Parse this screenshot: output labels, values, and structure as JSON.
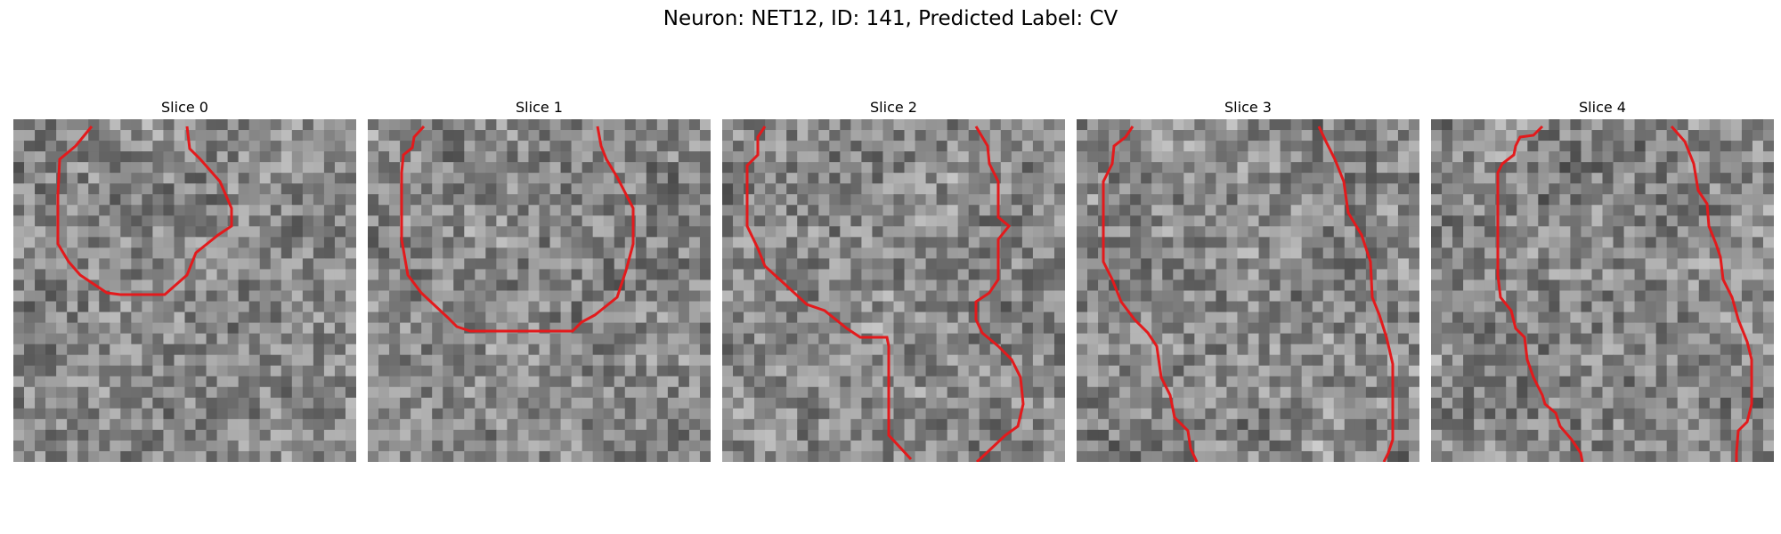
{
  "figure": {
    "title": "Neuron: NET12, ID: 141, Predicted Label: CV"
  },
  "panels": [
    {
      "title": "Slice 0"
    },
    {
      "title": "Slice 1"
    },
    {
      "title": "Slice 2"
    },
    {
      "title": "Slice 3"
    },
    {
      "title": "Slice 4"
    }
  ],
  "colors": {
    "contour": "#e31a1c",
    "background": "#ffffff"
  }
}
